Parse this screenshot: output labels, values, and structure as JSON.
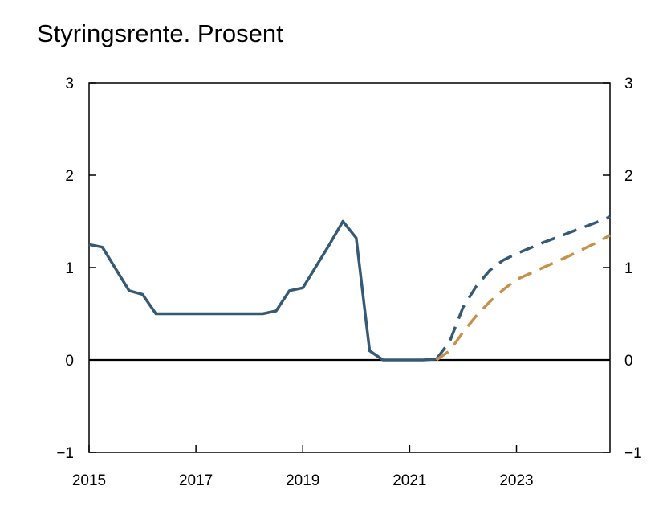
{
  "chart_data": {
    "type": "line",
    "title": "Styringsrente. Prosent",
    "xlabel": "",
    "ylabel": "",
    "xlim": [
      2015.0,
      2024.75
    ],
    "ylim": [
      -1,
      3
    ],
    "x_ticks": [
      "2015",
      "2017",
      "2019",
      "2021",
      "2023"
    ],
    "y_ticks": [
      "3",
      "2",
      "1",
      "0",
      "−1"
    ],
    "grid": false,
    "legend": "none",
    "series": [
      {
        "style": "solid",
        "color": "#365a75",
        "points": [
          [
            2015.0,
            1.25
          ],
          [
            2015.25,
            1.22
          ],
          [
            2015.75,
            0.75
          ],
          [
            2016.0,
            0.71
          ],
          [
            2016.25,
            0.5
          ],
          [
            2017.0,
            0.5
          ],
          [
            2018.0,
            0.5
          ],
          [
            2018.25,
            0.5
          ],
          [
            2018.5,
            0.53
          ],
          [
            2018.75,
            0.75
          ],
          [
            2019.0,
            0.78
          ],
          [
            2019.5,
            1.25
          ],
          [
            2019.75,
            1.5
          ],
          [
            2020.0,
            1.32
          ],
          [
            2020.25,
            0.1
          ],
          [
            2020.5,
            0.0
          ],
          [
            2021.0,
            0.0
          ],
          [
            2021.25,
            0.0
          ],
          [
            2021.5,
            0.01
          ]
        ]
      },
      {
        "style": "dashed",
        "color": "#365a75",
        "points": [
          [
            2021.5,
            0.01
          ],
          [
            2021.75,
            0.2
          ],
          [
            2022.0,
            0.57
          ],
          [
            2022.25,
            0.8
          ],
          [
            2022.5,
            0.97
          ],
          [
            2022.75,
            1.08
          ],
          [
            2023.0,
            1.15
          ],
          [
            2023.5,
            1.27
          ],
          [
            2024.0,
            1.38
          ],
          [
            2024.5,
            1.49
          ],
          [
            2024.75,
            1.55
          ]
        ]
      },
      {
        "style": "dashed",
        "color": "#c8914b",
        "points": [
          [
            2021.5,
            0.0
          ],
          [
            2021.75,
            0.1
          ],
          [
            2022.0,
            0.3
          ],
          [
            2022.25,
            0.48
          ],
          [
            2022.5,
            0.63
          ],
          [
            2022.75,
            0.76
          ],
          [
            2023.0,
            0.87
          ],
          [
            2023.5,
            1.0
          ],
          [
            2024.0,
            1.13
          ],
          [
            2024.5,
            1.27
          ],
          [
            2024.75,
            1.35
          ]
        ]
      }
    ]
  }
}
